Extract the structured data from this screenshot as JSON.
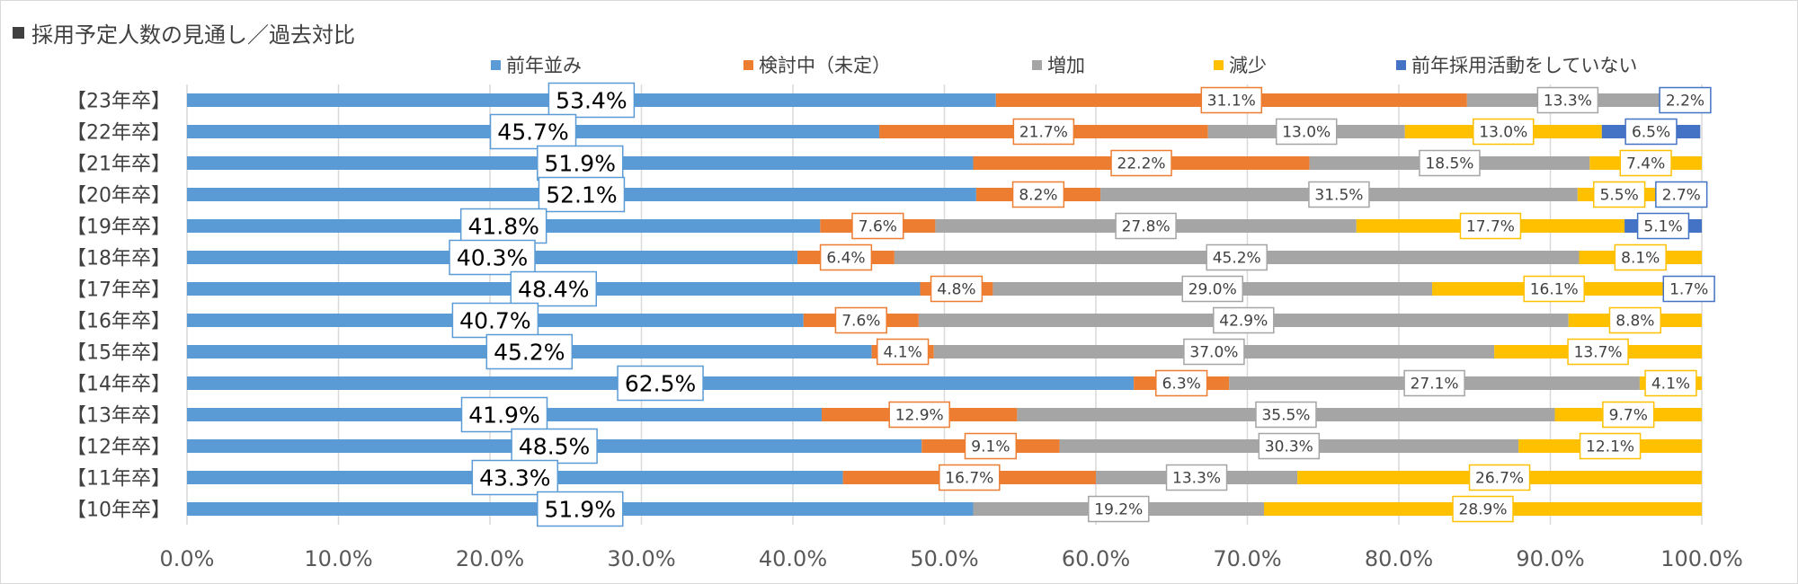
{
  "title": "採用予定人数の見通し／過去対比",
  "colors": {
    "series": [
      "#5b9bd5",
      "#ed7d31",
      "#a5a5a5",
      "#ffc000",
      "#4472c4"
    ],
    "title_marker": "#404040",
    "gridline": "#d9d9d9"
  },
  "chart_data": {
    "type": "bar",
    "orientation": "horizontal",
    "stacked": "percent",
    "title": "採用予定人数の見通し／過去対比",
    "legend_position": "top",
    "grid": true,
    "xlim": [
      0,
      100
    ],
    "x_ticks": [
      "0.0%",
      "10.0%",
      "20.0%",
      "30.0%",
      "40.0%",
      "50.0%",
      "60.0%",
      "70.0%",
      "80.0%",
      "90.0%",
      "100.0%"
    ],
    "categories": [
      "【23年卒】",
      "【22年卒】",
      "【21年卒】",
      "【20年卒】",
      "【19年卒】",
      "【18年卒】",
      "【17年卒】",
      "【16年卒】",
      "【15年卒】",
      "【14年卒】",
      "【13年卒】",
      "【12年卒】",
      "【11年卒】",
      "【10年卒】"
    ],
    "series": [
      {
        "name": "前年並み",
        "values": [
          53.4,
          45.7,
          51.9,
          52.1,
          41.8,
          40.3,
          48.4,
          40.7,
          45.2,
          62.5,
          41.9,
          48.5,
          43.3,
          51.9
        ],
        "labels": [
          "53.4%",
          "45.7%",
          "51.9%",
          "52.1%",
          "41.8%",
          "40.3%",
          "48.4%",
          "40.7%",
          "45.2%",
          "62.5%",
          "41.9%",
          "48.5%",
          "43.3%",
          "51.9%"
        ]
      },
      {
        "name": "検討中（未定）",
        "values": [
          31.1,
          21.7,
          22.2,
          8.2,
          7.6,
          6.4,
          4.8,
          7.6,
          4.1,
          6.3,
          12.9,
          9.1,
          16.7,
          0
        ],
        "labels": [
          "31.1%",
          "21.7%",
          "22.2%",
          "8.2%",
          "7.6%",
          "6.4%",
          "4.8%",
          "7.6%",
          "4.1%",
          "6.3%",
          "12.9%",
          "9.1%",
          "16.7%",
          ""
        ]
      },
      {
        "name": "増加",
        "values": [
          13.3,
          13.0,
          18.5,
          31.5,
          27.8,
          45.2,
          29.0,
          42.9,
          37.0,
          27.1,
          35.5,
          30.3,
          13.3,
          19.2
        ],
        "labels": [
          "13.3%",
          "13.0%",
          "18.5%",
          "31.5%",
          "27.8%",
          "45.2%",
          "29.0%",
          "42.9%",
          "37.0%",
          "27.1%",
          "35.5%",
          "30.3%",
          "13.3%",
          "19.2%"
        ]
      },
      {
        "name": "減少",
        "values": [
          0,
          13.0,
          7.4,
          5.5,
          17.7,
          8.1,
          16.1,
          8.8,
          13.7,
          4.1,
          9.7,
          12.1,
          26.7,
          28.9
        ],
        "labels": [
          "",
          "13.0%",
          "7.4%",
          "5.5%",
          "17.7%",
          "8.1%",
          "16.1%",
          "8.8%",
          "13.7%",
          "4.1%",
          "9.7%",
          "12.1%",
          "26.7%",
          "28.9%"
        ]
      },
      {
        "name": "前年採用活動をしていない",
        "values": [
          2.2,
          6.5,
          0,
          2.7,
          5.1,
          0,
          1.7,
          0,
          0,
          0,
          0,
          0,
          0,
          0
        ],
        "labels": [
          "2.2%",
          "6.5%",
          "",
          "2.7%",
          "5.1%",
          "",
          "1.7%",
          "",
          "",
          "",
          "",
          "",
          "",
          ""
        ]
      }
    ]
  }
}
